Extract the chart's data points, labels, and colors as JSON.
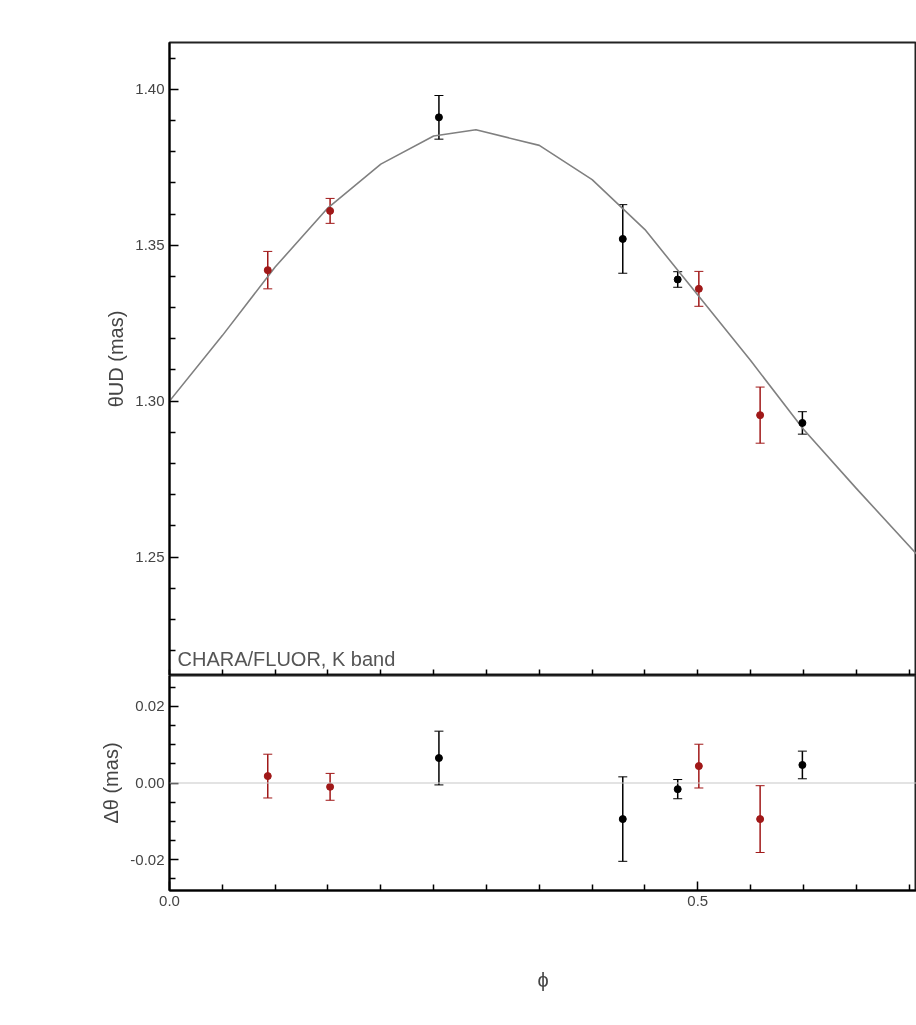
{
  "chart_data": [
    {
      "type": "scatter",
      "ylabel": "θUD (mas)",
      "tick_labels": "y",
      "annotations": [
        "CHARA/FLUOR, K band"
      ],
      "xlim": [
        0,
        0.707
      ],
      "ylim": [
        1.212,
        1.415
      ],
      "xticks": [
        {
          "value": 0,
          "label": null
        },
        {
          "value": 0.05,
          "label": null
        },
        {
          "value": 0.1,
          "label": null
        },
        {
          "value": 0.15,
          "label": null
        },
        {
          "value": 0.2,
          "label": null
        },
        {
          "value": 0.25,
          "label": null
        },
        {
          "value": 0.3,
          "label": null
        },
        {
          "value": 0.35,
          "label": null
        },
        {
          "value": 0.4,
          "label": null
        },
        {
          "value": 0.45,
          "label": null
        },
        {
          "value": 0.5,
          "label": null
        },
        {
          "value": 0.55,
          "label": null
        },
        {
          "value": 0.6,
          "label": null
        },
        {
          "value": 0.65,
          "label": null
        },
        {
          "value": 0.7,
          "label": null
        }
      ],
      "yticks": [
        {
          "value": 1.22,
          "label": null
        },
        {
          "value": 1.23,
          "label": null
        },
        {
          "value": 1.24,
          "label": null
        },
        {
          "value": 1.25,
          "label": "1.25"
        },
        {
          "value": 1.26,
          "label": null
        },
        {
          "value": 1.27,
          "label": null
        },
        {
          "value": 1.28,
          "label": null
        },
        {
          "value": 1.29,
          "label": null
        },
        {
          "value": 1.3,
          "label": "1.30"
        },
        {
          "value": 1.31,
          "label": null
        },
        {
          "value": 1.32,
          "label": null
        },
        {
          "value": 1.33,
          "label": null
        },
        {
          "value": 1.34,
          "label": null
        },
        {
          "value": 1.35,
          "label": "1.35"
        },
        {
          "value": 1.36,
          "label": null
        },
        {
          "value": 1.37,
          "label": null
        },
        {
          "value": 1.38,
          "label": null
        },
        {
          "value": 1.39,
          "label": null
        },
        {
          "value": 1.4,
          "label": "1.40"
        },
        {
          "value": 1.41,
          "label": null
        }
      ],
      "series": [
        {
          "type": "line",
          "marker": "none",
          "color": "#808080",
          "x": [
            0,
            0.05,
            0.1,
            0.15,
            0.2,
            0.25,
            0.29,
            0.35,
            0.4,
            0.45,
            0.5,
            0.55,
            0.6,
            0.65,
            0.707
          ],
          "values": [
            1.3,
            1.321,
            1.343,
            1.362,
            1.376,
            1.385,
            1.387,
            1.382,
            1.371,
            1.355,
            1.334,
            1.313,
            1.291,
            1.272,
            1.251
          ]
        },
        {
          "marker": "circle",
          "color": "#a01818",
          "x": [
            0.093,
            0.152,
            0.501,
            0.559
          ],
          "values": [
            1.342,
            1.361,
            1.336,
            1.2955
          ],
          "errors": [
            0.006,
            0.004,
            0.0056,
            0.009
          ]
        },
        {
          "marker": "circle",
          "color": "#000000",
          "x": [
            0.255,
            0.429,
            0.481,
            0.599
          ],
          "values": [
            1.391,
            1.352,
            1.339,
            1.293
          ],
          "errors": [
            0.007,
            0.011,
            0.0025,
            0.0036
          ]
        }
      ]
    },
    {
      "type": "scatter",
      "xlabel": "ϕ",
      "ylabel": "Δθ (mas)",
      "marker": "circle",
      "xlim": [
        0,
        0.707
      ],
      "ylim": [
        -0.028,
        0.028
      ],
      "xticks": [
        {
          "value": 0,
          "label": "0.0"
        },
        {
          "value": 0.05,
          "label": null
        },
        {
          "value": 0.1,
          "label": null
        },
        {
          "value": 0.15,
          "label": null
        },
        {
          "value": 0.2,
          "label": null
        },
        {
          "value": 0.25,
          "label": null
        },
        {
          "value": 0.3,
          "label": null
        },
        {
          "value": 0.35,
          "label": null
        },
        {
          "value": 0.4,
          "label": null
        },
        {
          "value": 0.45,
          "label": null
        },
        {
          "value": 0.5,
          "label": "0.5"
        },
        {
          "value": 0.55,
          "label": null
        },
        {
          "value": 0.6,
          "label": null
        },
        {
          "value": 0.65,
          "label": null
        },
        {
          "value": 0.7,
          "label": null
        }
      ],
      "yticks": [
        {
          "value": -0.025,
          "label": null
        },
        {
          "value": -0.02,
          "label": "-0.02"
        },
        {
          "value": -0.015,
          "label": null
        },
        {
          "value": -0.01,
          "label": null
        },
        {
          "value": -0.005,
          "label": null
        },
        {
          "value": 0,
          "label": "0.00"
        },
        {
          "value": 0.005,
          "label": null
        },
        {
          "value": 0.01,
          "label": null
        },
        {
          "value": 0.015,
          "label": null
        },
        {
          "value": 0.02,
          "label": "0.02"
        },
        {
          "value": 0.025,
          "label": null
        }
      ],
      "ref_lines": [
        {
          "axis": "y",
          "value": 0,
          "color": "#c8c8c8"
        }
      ],
      "series": [
        {
          "color": "#a01818",
          "x": [
            0.093,
            0.152,
            0.501,
            0.559
          ],
          "values": [
            0.0018,
            -0.001,
            0.0044,
            -0.0094
          ],
          "errors": [
            0.0057,
            0.0035,
            0.0057,
            0.0087
          ]
        },
        {
          "color": "#000000",
          "x": [
            0.255,
            0.429,
            0.481,
            0.599
          ],
          "values": [
            0.0065,
            -0.0094,
            -0.0016,
            0.0047
          ],
          "errors": [
            0.007,
            0.011,
            0.0025,
            0.0036
          ]
        }
      ]
    }
  ]
}
